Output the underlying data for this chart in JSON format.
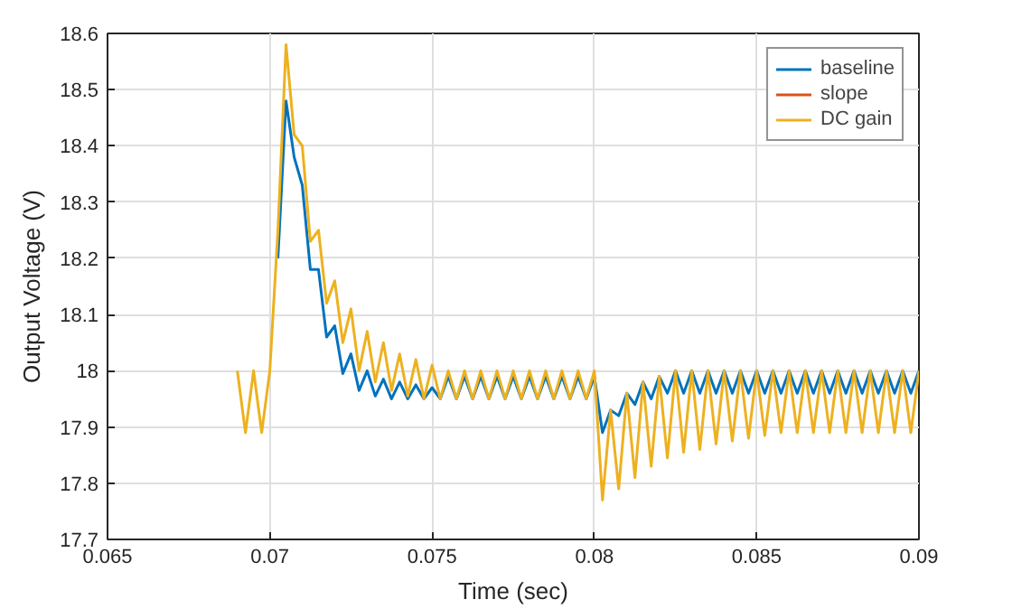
{
  "chart_data": {
    "type": "line",
    "xlabel": "Time (sec)",
    "ylabel": "Output Voltage (V)",
    "xlim": [
      0.065,
      0.09
    ],
    "xticks": [
      0.065,
      0.07,
      0.075,
      0.08,
      0.085,
      0.09
    ],
    "ylim": [
      17.7,
      18.6
    ],
    "yticks": [
      17.7,
      17.8,
      17.9,
      18,
      18.1,
      18.2,
      18.3,
      18.4,
      18.5,
      18.6
    ],
    "grid": true,
    "legend": "top right",
    "marker": "none",
    "line_style": "solid",
    "series": [
      {
        "name": "baseline",
        "color": "#0072bd",
        "x": [
          0.07025,
          0.0705,
          0.07075,
          0.071,
          0.07125,
          0.0715,
          0.07175,
          0.072,
          0.07225,
          0.0725,
          0.07275,
          0.073,
          0.07325,
          0.0735,
          0.07375,
          0.074,
          0.07425,
          0.0745,
          0.07475,
          0.075,
          0.07525,
          0.0755,
          0.07575,
          0.076,
          0.07625,
          0.0765,
          0.07675,
          0.077,
          0.07725,
          0.0775,
          0.07775,
          0.078,
          0.07825,
          0.0785,
          0.07875,
          0.079,
          0.07925,
          0.0795,
          0.07975,
          0.08,
          0.08025,
          0.0805,
          0.08075,
          0.081,
          0.08125,
          0.0815,
          0.08175,
          0.082,
          0.08225,
          0.0825,
          0.08275,
          0.083,
          0.08325,
          0.0835,
          0.08375,
          0.084,
          0.08425,
          0.0845,
          0.08475,
          0.085,
          0.08525,
          0.0855,
          0.08575,
          0.086,
          0.08625,
          0.0865,
          0.08675,
          0.087,
          0.08725,
          0.0875,
          0.08775,
          0.088,
          0.08825,
          0.0885,
          0.08875,
          0.089,
          0.08925,
          0.0895,
          0.08975,
          0.09
        ],
        "values": [
          18.2,
          18.48,
          18.38,
          18.33,
          18.18,
          18.18,
          18.06,
          18.08,
          17.995,
          18.03,
          17.965,
          18,
          17.955,
          17.985,
          17.95,
          17.98,
          17.95,
          17.975,
          17.95,
          17.97,
          17.95,
          17.99,
          17.95,
          17.99,
          17.95,
          17.99,
          17.95,
          17.99,
          17.95,
          17.99,
          17.95,
          17.99,
          17.95,
          17.99,
          17.95,
          17.99,
          17.95,
          17.99,
          17.95,
          17.99,
          17.89,
          17.93,
          17.92,
          17.96,
          17.94,
          17.98,
          17.95,
          17.99,
          17.96,
          18,
          17.96,
          18,
          17.96,
          18,
          17.96,
          18,
          17.96,
          18,
          17.96,
          18,
          17.96,
          18,
          17.96,
          18,
          17.96,
          18,
          17.96,
          18,
          17.96,
          18,
          17.96,
          18,
          17.96,
          18,
          17.96,
          18,
          17.96,
          18,
          17.96,
          18
        ]
      },
      {
        "name": "slope",
        "color": "#d95319"
      },
      {
        "name": "DC gain",
        "color": "#edb120",
        "x": [
          0.069,
          0.06925,
          0.0695,
          0.06975,
          0.07,
          0.07025,
          0.0705,
          0.07075,
          0.071,
          0.07125,
          0.0715,
          0.07175,
          0.072,
          0.07225,
          0.0725,
          0.07275,
          0.073,
          0.07325,
          0.0735,
          0.07375,
          0.074,
          0.07425,
          0.0745,
          0.07475,
          0.075,
          0.07525,
          0.0755,
          0.07575,
          0.076,
          0.07625,
          0.0765,
          0.07675,
          0.077,
          0.07725,
          0.0775,
          0.07775,
          0.078,
          0.07825,
          0.0785,
          0.07875,
          0.079,
          0.07925,
          0.0795,
          0.07975,
          0.08,
          0.08025,
          0.0805,
          0.08075,
          0.081,
          0.08125,
          0.0815,
          0.08175,
          0.082,
          0.08225,
          0.0825,
          0.08275,
          0.083,
          0.08325,
          0.0835,
          0.08375,
          0.084,
          0.08425,
          0.0845,
          0.08475,
          0.085,
          0.08525,
          0.0855,
          0.08575,
          0.086,
          0.08625,
          0.0865,
          0.08675,
          0.087,
          0.08725,
          0.0875,
          0.08775,
          0.088,
          0.08825,
          0.0885,
          0.08875,
          0.089,
          0.08925,
          0.0895,
          0.08975,
          0.09
        ],
        "values": [
          18,
          17.89,
          18,
          17.89,
          18,
          18.25,
          18.58,
          18.42,
          18.4,
          18.23,
          18.25,
          18.12,
          18.16,
          18.05,
          18.11,
          18,
          18.07,
          17.98,
          18.05,
          17.965,
          18.03,
          17.955,
          18.02,
          17.95,
          18.01,
          17.95,
          18,
          17.95,
          18,
          17.95,
          18,
          17.95,
          18,
          17.95,
          18,
          17.95,
          18,
          17.95,
          18,
          17.95,
          18,
          17.95,
          18,
          17.95,
          18,
          17.77,
          17.93,
          17.79,
          17.96,
          17.81,
          17.98,
          17.83,
          17.99,
          17.845,
          18,
          17.855,
          18,
          17.86,
          18,
          17.87,
          18,
          17.875,
          18,
          17.88,
          18,
          17.885,
          18,
          17.89,
          18,
          17.89,
          18,
          17.89,
          18,
          17.89,
          18,
          17.89,
          18,
          17.89,
          18,
          17.89,
          18,
          17.89,
          18,
          17.89,
          18
        ]
      }
    ]
  }
}
